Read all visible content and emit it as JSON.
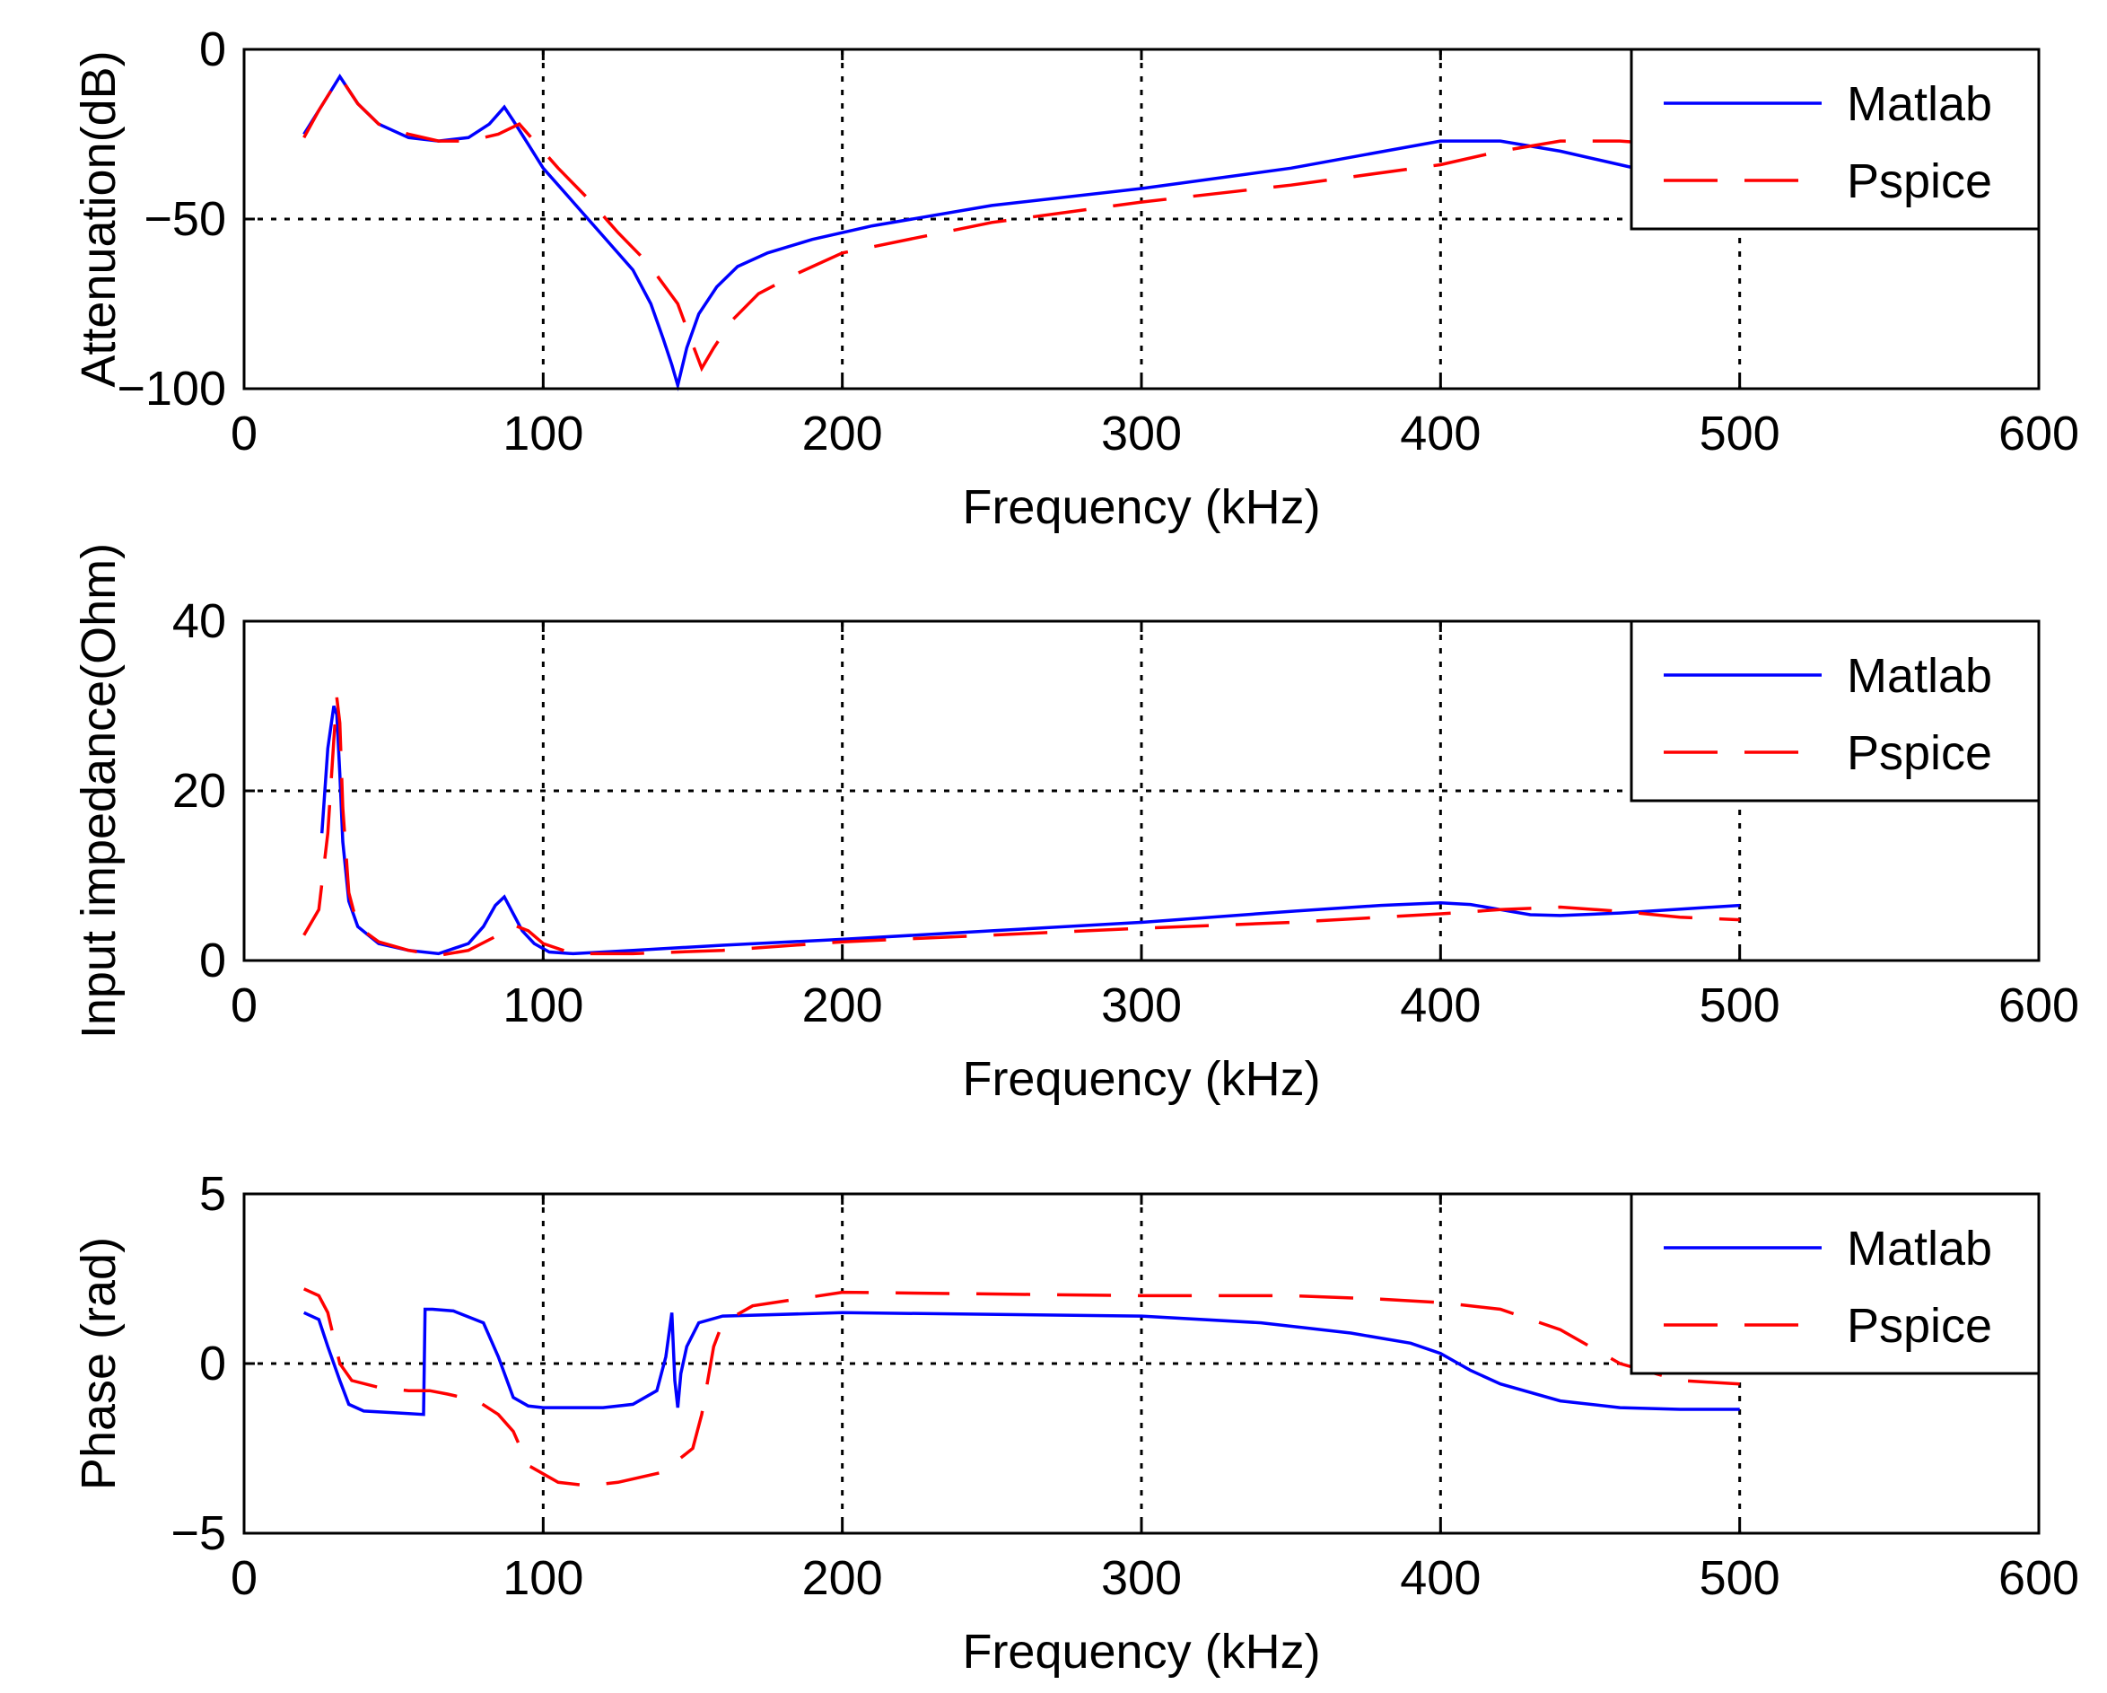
{
  "chart_data": [
    {
      "type": "line",
      "xlabel": "Frequency (kHz)",
      "ylabel": "Attenuation(dB)",
      "xlim": [
        0,
        600
      ],
      "ylim": [
        -100,
        0
      ],
      "xticks": [
        0,
        100,
        200,
        300,
        400,
        500,
        600
      ],
      "xtick_labels": [
        "0",
        "100",
        "200",
        "300",
        "400",
        "500",
        "600"
      ],
      "yticks": [
        0,
        -50,
        -100
      ],
      "ytick_labels": [
        "0",
        "−50",
        "−100"
      ],
      "grid": true,
      "legend_position": "top-right",
      "series": [
        {
          "name": "Matlab",
          "color": "#0000ff",
          "style": "solid",
          "x": [
            20,
            25,
            32,
            38,
            45,
            55,
            65,
            75,
            82,
            87,
            90,
            95,
            100,
            110,
            120,
            130,
            136,
            140,
            143,
            145,
            148,
            152,
            158,
            165,
            175,
            190,
            210,
            250,
            300,
            350,
            400,
            420,
            440,
            460,
            475
          ],
          "y": [
            -25,
            -18,
            -8,
            -16,
            -22,
            -26,
            -27,
            -26,
            -22,
            -17,
            -21,
            -28,
            -35,
            -45,
            -55,
            -65,
            -75,
            -85,
            -93,
            -99,
            -88,
            -78,
            -70,
            -64,
            -60,
            -56,
            -52,
            -46,
            -41,
            -35,
            -27,
            -27,
            -30,
            -34,
            -37
          ]
        },
        {
          "name": "Pspice",
          "color": "#ff0000",
          "style": "dashed",
          "x": [
            20,
            25,
            32,
            38,
            45,
            55,
            65,
            75,
            85,
            92,
            97,
            105,
            115,
            125,
            135,
            145,
            150,
            153,
            157,
            163,
            172,
            185,
            200,
            250,
            300,
            350,
            400,
            420,
            440,
            460,
            475
          ],
          "y": [
            -26,
            -18,
            -8,
            -16,
            -22,
            -25,
            -27,
            -27,
            -25,
            -22,
            -27,
            -35,
            -44,
            -54,
            -63,
            -75,
            -87,
            -94,
            -88,
            -80,
            -72,
            -66,
            -60,
            -51,
            -45,
            -40,
            -34,
            -30,
            -27,
            -27,
            -28
          ]
        }
      ]
    },
    {
      "type": "line",
      "xlabel": "Frequency (kHz)",
      "ylabel": "Input impedance(Ohm)",
      "xlim": [
        0,
        600
      ],
      "ylim": [
        0,
        40
      ],
      "xticks": [
        0,
        100,
        200,
        300,
        400,
        500,
        600
      ],
      "xtick_labels": [
        "0",
        "100",
        "200",
        "300",
        "400",
        "500",
        "600"
      ],
      "yticks": [
        0,
        20,
        40
      ],
      "ytick_labels": [
        "0",
        "20",
        "40"
      ],
      "grid": true,
      "legend_position": "top-right",
      "series": [
        {
          "name": "Matlab",
          "color": "#0000ff",
          "style": "solid",
          "x": [
            26,
            28,
            30,
            31,
            32,
            33,
            35,
            38,
            45,
            55,
            65,
            75,
            80,
            84,
            87,
            90,
            93,
            97,
            102,
            110,
            130,
            160,
            200,
            250,
            300,
            350,
            380,
            400,
            410,
            420,
            430,
            440,
            460,
            500
          ],
          "y": [
            15,
            25,
            30,
            29,
            22,
            14,
            7,
            4,
            2,
            1.2,
            0.8,
            2,
            4,
            6.5,
            7.5,
            5.5,
            3.5,
            2,
            1,
            0.8,
            1.2,
            1.8,
            2.5,
            3.5,
            4.5,
            5.8,
            6.5,
            6.8,
            6.6,
            6,
            5.4,
            5.3,
            5.6,
            6.5
          ]
        },
        {
          "name": "Pspice",
          "color": "#ff0000",
          "style": "dashed",
          "x": [
            20,
            25,
            28,
            30,
            31,
            32,
            33,
            35,
            38,
            45,
            55,
            65,
            75,
            85,
            90,
            95,
            100,
            110,
            130,
            160,
            200,
            250,
            300,
            350,
            400,
            420,
            440,
            460,
            480,
            500
          ],
          "y": [
            3,
            6,
            15,
            26,
            31,
            28,
            18,
            8,
            4,
            2.2,
            1.2,
            0.6,
            1.2,
            3,
            4.2,
            3.5,
            2,
            0.8,
            0.8,
            1.2,
            2.2,
            3,
            3.8,
            4.5,
            5.5,
            6,
            6.3,
            5.8,
            5.1,
            4.8
          ]
        }
      ]
    },
    {
      "type": "line",
      "xlabel": "Frequency (kHz)",
      "ylabel": "Phase (rad)",
      "xlim": [
        0,
        600
      ],
      "ylim": [
        -5,
        5
      ],
      "xticks": [
        0,
        100,
        200,
        300,
        400,
        500,
        600
      ],
      "xtick_labels": [
        "0",
        "100",
        "200",
        "300",
        "400",
        "500",
        "600"
      ],
      "yticks": [
        5,
        0,
        -5
      ],
      "ytick_labels": [
        "5",
        "0",
        "−5"
      ],
      "grid": true,
      "legend_position": "top-right",
      "series": [
        {
          "name": "Matlab",
          "color": "#0000ff",
          "style": "solid",
          "x": [
            20,
            25,
            28,
            32,
            35,
            40,
            50,
            60,
            60.5,
            63,
            70,
            80,
            85,
            90,
            95,
            100,
            120,
            130,
            138,
            141,
            143,
            144,
            145,
            146,
            148,
            152,
            160,
            200,
            300,
            340,
            370,
            390,
            400,
            410,
            420,
            440,
            460,
            480,
            500
          ],
          "y": [
            1.5,
            1.3,
            0.5,
            -0.5,
            -1.2,
            -1.4,
            -1.45,
            -1.5,
            1.6,
            1.6,
            1.55,
            1.2,
            0.2,
            -1.0,
            -1.25,
            -1.3,
            -1.3,
            -1.2,
            -0.8,
            0.2,
            1.5,
            -0.5,
            -1.3,
            -0.3,
            0.5,
            1.2,
            1.4,
            1.5,
            1.4,
            1.2,
            0.9,
            0.6,
            0.3,
            -0.2,
            -0.6,
            -1.1,
            -1.3,
            -1.35,
            -1.35
          ]
        },
        {
          "name": "Pspice",
          "color": "#ff0000",
          "style": "dashed",
          "x": [
            20,
            25,
            28,
            32,
            36,
            45,
            55,
            62,
            68,
            78,
            85,
            90,
            95,
            105,
            115,
            125,
            140,
            150,
            153,
            155,
            157,
            160,
            170,
            200,
            300,
            350,
            380,
            400,
            420,
            440,
            460,
            480,
            500
          ],
          "y": [
            2.2,
            2.0,
            1.5,
            0.0,
            -0.5,
            -0.7,
            -0.8,
            -0.8,
            -0.9,
            -1.1,
            -1.5,
            -2.0,
            -3.0,
            -3.5,
            -3.6,
            -3.5,
            -3.2,
            -2.5,
            -1.5,
            -0.5,
            0.5,
            1.2,
            1.7,
            2.1,
            2.0,
            2.0,
            1.9,
            1.8,
            1.6,
            1.0,
            0.0,
            -0.5,
            -0.6
          ]
        }
      ]
    }
  ]
}
